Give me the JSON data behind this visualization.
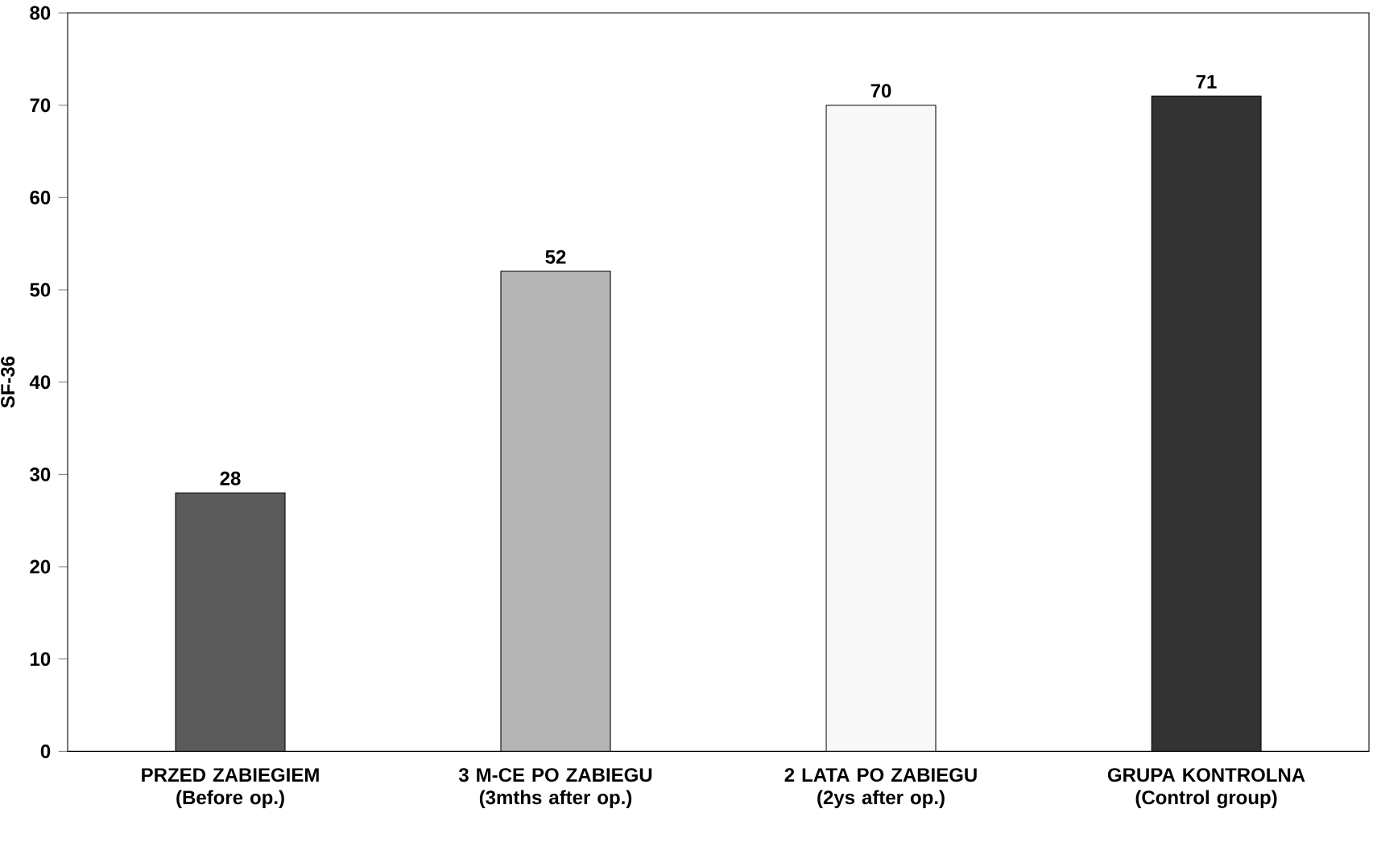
{
  "chart_data": {
    "type": "bar",
    "ylabel": "SF-36",
    "categories": [
      "PRZED ZABIEGIEM (Before op.)",
      "3 M-CE PO ZABIEGU (3mths after op.)",
      "2 LATA PO ZABIEGU (2ys after op.)",
      "GRUPA KONTROLNA (Control group)"
    ],
    "values": [
      28,
      52,
      70,
      71
    ],
    "colors": [
      "#5a5a5a",
      "#b4b4b4",
      "#f8f8f8",
      "#333333"
    ],
    "ylim": [
      0,
      80
    ],
    "yticks": [
      0,
      10,
      20,
      30,
      40,
      50,
      60,
      70,
      80
    ],
    "data_labels": true
  }
}
